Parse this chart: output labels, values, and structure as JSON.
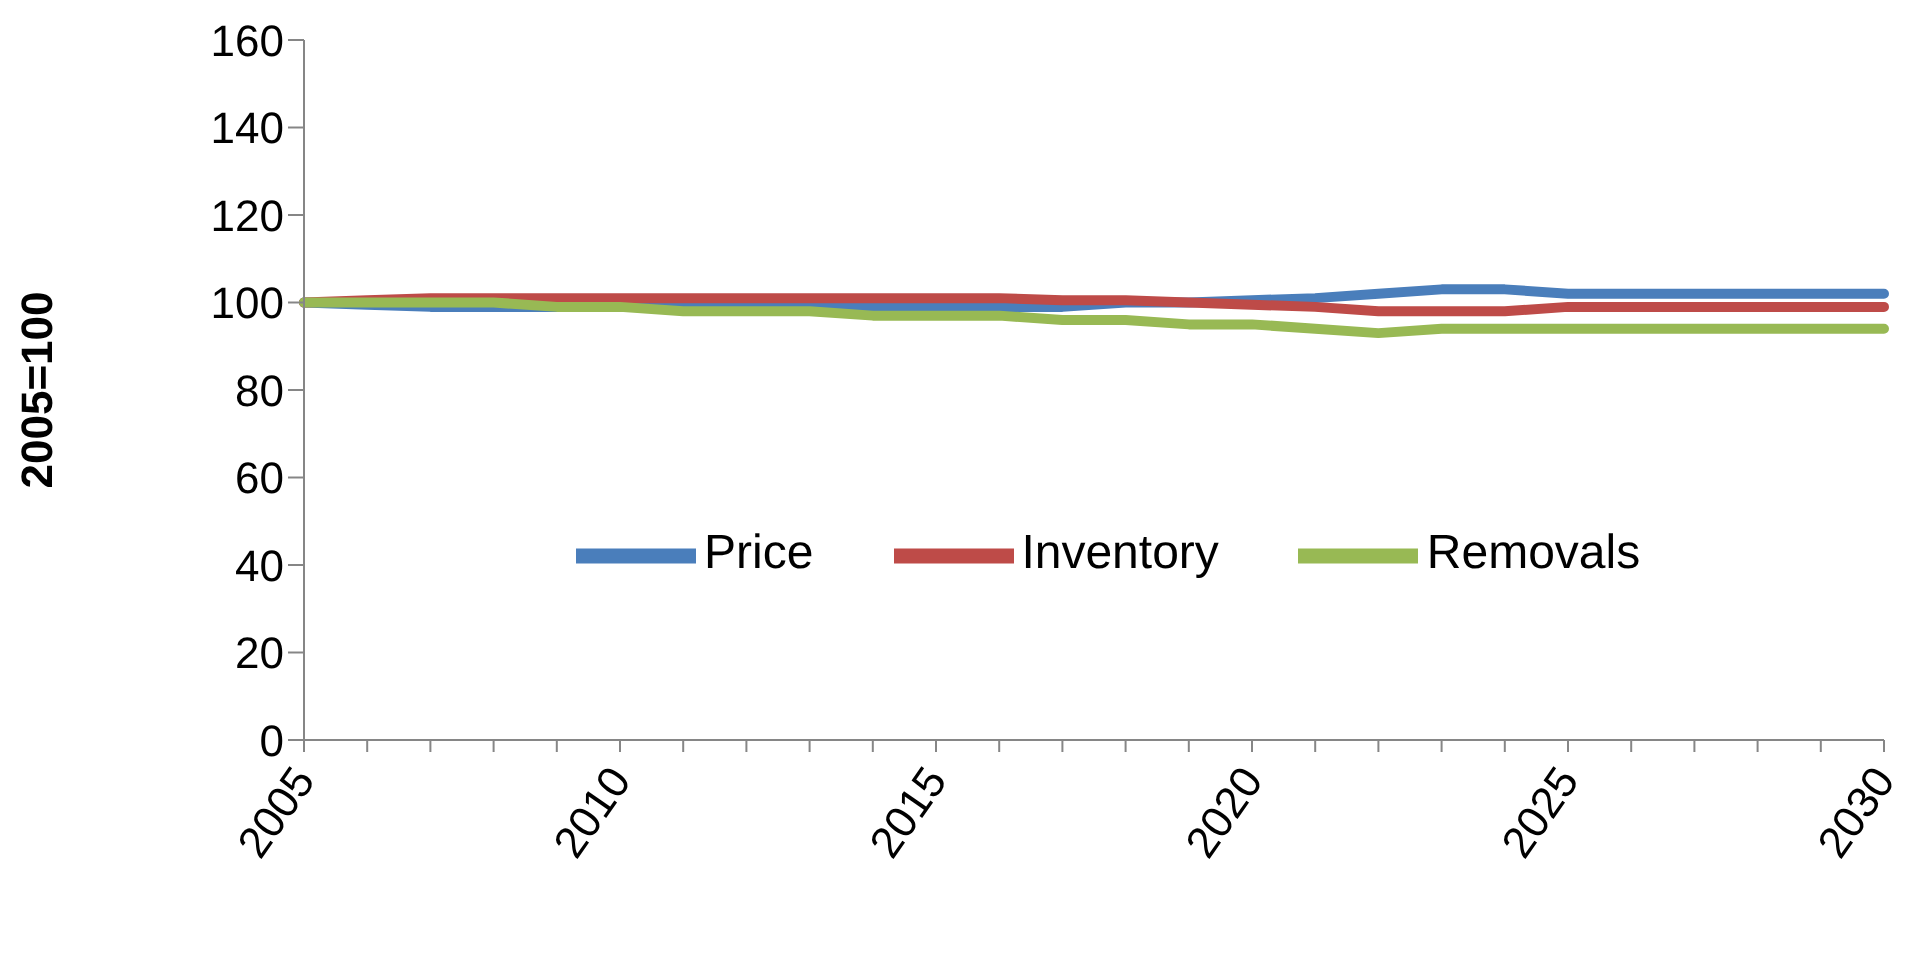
{
  "chart_data": {
    "type": "line",
    "ylabel": "2005=100",
    "categories": [
      "2005",
      null,
      null,
      null,
      null,
      "2010",
      null,
      null,
      null,
      null,
      "2015",
      null,
      null,
      null,
      null,
      "2020",
      null,
      null,
      null,
      null,
      "2025",
      null,
      null,
      null,
      null,
      "2030"
    ],
    "series": [
      {
        "name": "Price",
        "color": "#4a7ebb",
        "values": [
          100,
          99.5,
          99,
          99,
          99,
          null,
          99,
          99,
          99,
          99,
          99,
          99,
          99,
          100,
          100,
          100.5,
          101,
          102,
          103,
          103,
          102,
          102,
          102,
          102,
          102,
          102
        ]
      },
      {
        "name": "Inventory",
        "color": "#be4b48",
        "values": [
          100,
          100.5,
          101,
          101,
          101,
          101,
          101,
          101,
          101,
          101,
          101,
          101,
          100.5,
          100.5,
          100,
          99.5,
          99,
          98,
          98,
          98,
          99,
          99,
          99,
          99,
          99,
          99
        ]
      },
      {
        "name": "Removals",
        "color": "#98b954",
        "values": [
          100,
          100,
          100,
          100,
          99,
          99,
          98,
          98,
          98,
          97,
          97,
          97,
          96,
          96,
          95,
          95,
          94,
          93,
          94,
          94,
          94,
          94,
          94,
          94,
          94,
          94
        ]
      }
    ],
    "ylim": [
      0,
      160
    ],
    "yticks": [
      0,
      20,
      40,
      60,
      80,
      100,
      120,
      140,
      160
    ],
    "grid": false,
    "legend": "center",
    "marker": "none",
    "line_style": "solid"
  }
}
